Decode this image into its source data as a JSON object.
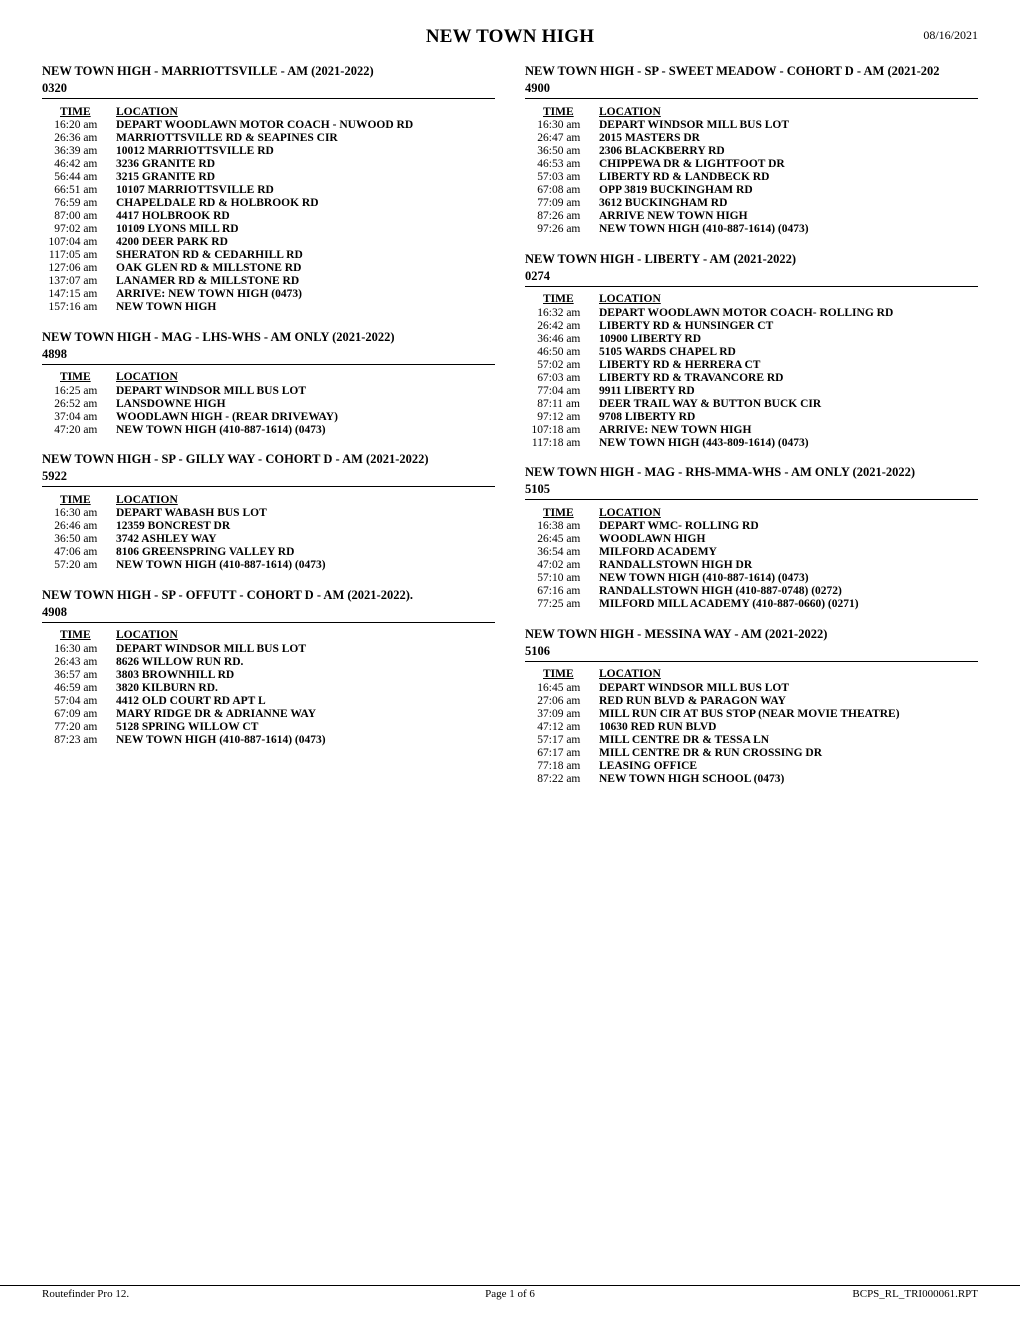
{
  "header": {
    "title": "NEW TOWN HIGH",
    "date": "08/16/2021"
  },
  "footer": {
    "left": "Routefinder Pro 12.",
    "center": "Page 1 of 6",
    "right": "BCPS_RL_TRI000061.RPT"
  },
  "table_headers": {
    "time": "TIME",
    "location": "LOCATION"
  },
  "left_routes": [
    {
      "title": "NEW TOWN HIGH - MARRIOTTSVILLE - AM (2021-2022)",
      "number": "0320",
      "stops": [
        {
          "idx": "1",
          "time": "6:20 am",
          "loc": "DEPART WOODLAWN MOTOR COACH - NUWOOD RD"
        },
        {
          "idx": "2",
          "time": "6:36 am",
          "loc": "MARRIOTTSVILLE RD & SEAPINES CIR"
        },
        {
          "idx": "3",
          "time": "6:39 am",
          "loc": "10012 MARRIOTTSVILLE RD"
        },
        {
          "idx": "4",
          "time": "6:42 am",
          "loc": "3236 GRANITE RD"
        },
        {
          "idx": "5",
          "time": "6:44 am",
          "loc": "3215 GRANITE RD"
        },
        {
          "idx": "6",
          "time": "6:51 am",
          "loc": "10107 MARRIOTTSVILLE RD"
        },
        {
          "idx": "7",
          "time": "6:59 am",
          "loc": "CHAPELDALE RD & HOLBROOK RD"
        },
        {
          "idx": "8",
          "time": "7:00 am",
          "loc": "4417 HOLBROOK RD"
        },
        {
          "idx": "9",
          "time": "7:02 am",
          "loc": "10109 LYONS MILL RD"
        },
        {
          "idx": "10",
          "time": "7:04 am",
          "loc": "4200 DEER PARK RD"
        },
        {
          "idx": "11",
          "time": "7:05 am",
          "loc": "SHERATON RD & CEDARHILL RD"
        },
        {
          "idx": "12",
          "time": "7:06 am",
          "loc": "OAK GLEN RD & MILLSTONE RD"
        },
        {
          "idx": "13",
          "time": "7:07 am",
          "loc": "LANAMER RD & MILLSTONE RD"
        },
        {
          "idx": "14",
          "time": "7:15 am",
          "loc": "ARRIVE: NEW TOWN HIGH (0473)"
        },
        {
          "idx": "15",
          "time": "7:16 am",
          "loc": "NEW TOWN HIGH"
        }
      ]
    },
    {
      "title": "NEW TOWN HIGH - MAG - LHS-WHS - AM ONLY (2021-2022)",
      "number": "4898",
      "stops": [
        {
          "idx": "1",
          "time": "6:25 am",
          "loc": "DEPART WINDSOR MILL BUS LOT"
        },
        {
          "idx": "2",
          "time": "6:52 am",
          "loc": "LANSDOWNE HIGH"
        },
        {
          "idx": "3",
          "time": "7:04 am",
          "loc": "WOODLAWN HIGH - (REAR DRIVEWAY)"
        },
        {
          "idx": "4",
          "time": "7:20 am",
          "loc": "NEW TOWN HIGH (410-887-1614) (0473)"
        }
      ]
    },
    {
      "title": "NEW TOWN HIGH - SP - GILLY WAY - COHORT D - AM (2021-2022)",
      "number": "5922",
      "stops": [
        {
          "idx": "1",
          "time": "6:30 am",
          "loc": "DEPART WABASH BUS LOT"
        },
        {
          "idx": "2",
          "time": "6:46 am",
          "loc": "12359 BONCREST DR"
        },
        {
          "idx": "3",
          "time": "6:50 am",
          "loc": "3742 ASHLEY WAY"
        },
        {
          "idx": "4",
          "time": "7:06 am",
          "loc": "8106 GREENSPRING VALLEY RD"
        },
        {
          "idx": "5",
          "time": "7:20 am",
          "loc": "NEW TOWN HIGH (410-887-1614) (0473)"
        }
      ]
    },
    {
      "title": "NEW TOWN HIGH - SP - OFFUTT - COHORT D - AM (2021-2022).",
      "number": "4908",
      "stops": [
        {
          "idx": "1",
          "time": "6:30 am",
          "loc": "DEPART WINDSOR MILL BUS LOT"
        },
        {
          "idx": "2",
          "time": "6:43 am",
          "loc": "8626 WILLOW RUN RD."
        },
        {
          "idx": "3",
          "time": "6:57 am",
          "loc": "3803 BROWNHILL RD"
        },
        {
          "idx": "4",
          "time": "6:59 am",
          "loc": "3820 KILBURN RD."
        },
        {
          "idx": "5",
          "time": "7:04 am",
          "loc": "4412 OLD COURT RD APT L"
        },
        {
          "idx": "6",
          "time": "7:09 am",
          "loc": "MARY RIDGE DR & ADRIANNE WAY"
        },
        {
          "idx": "7",
          "time": "7:20 am",
          "loc": "5128 SPRING WILLOW CT"
        },
        {
          "idx": "8",
          "time": "7:23 am",
          "loc": "NEW TOWN HIGH (410-887-1614) (0473)"
        }
      ]
    }
  ],
  "right_routes": [
    {
      "title": "NEW TOWN HIGH - SP - SWEET MEADOW - COHORT D - AM (2021-202",
      "number": "4900",
      "stops": [
        {
          "idx": "1",
          "time": "6:30 am",
          "loc": "DEPART WINDSOR MILL BUS LOT"
        },
        {
          "idx": "2",
          "time": "6:47 am",
          "loc": "2015 MASTERS DR"
        },
        {
          "idx": "3",
          "time": "6:50 am",
          "loc": "2306 BLACKBERRY RD"
        },
        {
          "idx": "4",
          "time": "6:53 am",
          "loc": "CHIPPEWA DR & LIGHTFOOT DR"
        },
        {
          "idx": "5",
          "time": "7:03 am",
          "loc": "LIBERTY RD & LANDBECK RD"
        },
        {
          "idx": "6",
          "time": "7:08 am",
          "loc": "OPP 3819 BUCKINGHAM RD"
        },
        {
          "idx": "7",
          "time": "7:09 am",
          "loc": "3612 BUCKINGHAM RD"
        },
        {
          "idx": "8",
          "time": "7:26 am",
          "loc": "ARRIVE NEW TOWN HIGH"
        },
        {
          "idx": "9",
          "time": "7:26 am",
          "loc": "NEW TOWN HIGH (410-887-1614) (0473)"
        }
      ]
    },
    {
      "title": "NEW TOWN HIGH - LIBERTY - AM (2021-2022)",
      "number": "0274",
      "stops": [
        {
          "idx": "1",
          "time": "6:32 am",
          "loc": "DEPART WOODLAWN MOTOR COACH- ROLLING RD"
        },
        {
          "idx": "2",
          "time": "6:42 am",
          "loc": "LIBERTY RD & HUNSINGER CT"
        },
        {
          "idx": "3",
          "time": "6:46 am",
          "loc": "10900 LIBERTY RD"
        },
        {
          "idx": "4",
          "time": "6:50 am",
          "loc": "5105 WARDS CHAPEL RD"
        },
        {
          "idx": "5",
          "time": "7:02 am",
          "loc": "LIBERTY RD & HERRERA CT"
        },
        {
          "idx": "6",
          "time": "7:03 am",
          "loc": "LIBERTY RD & TRAVANCORE RD"
        },
        {
          "idx": "7",
          "time": "7:04 am",
          "loc": "9911 LIBERTY RD"
        },
        {
          "idx": "8",
          "time": "7:11 am",
          "loc": "DEER TRAIL WAY & BUTTON BUCK CIR"
        },
        {
          "idx": "9",
          "time": "7:12 am",
          "loc": "9708 LIBERTY RD"
        },
        {
          "idx": "10",
          "time": "7:18 am",
          "loc": "ARRIVE: NEW TOWN HIGH"
        },
        {
          "idx": "11",
          "time": "7:18 am",
          "loc": "NEW TOWN HIGH (443-809-1614) (0473)"
        }
      ]
    },
    {
      "title": "NEW TOWN HIGH - MAG - RHS-MMA-WHS - AM ONLY (2021-2022)",
      "number": "5105",
      "stops": [
        {
          "idx": "1",
          "time": "6:38 am",
          "loc": "DEPART WMC- ROLLING RD"
        },
        {
          "idx": "2",
          "time": "6:45 am",
          "loc": "WOODLAWN HIGH"
        },
        {
          "idx": "3",
          "time": "6:54 am",
          "loc": "MILFORD ACADEMY"
        },
        {
          "idx": "4",
          "time": "7:02 am",
          "loc": "RANDALLSTOWN HIGH DR"
        },
        {
          "idx": "5",
          "time": "7:10 am",
          "loc": "NEW TOWN HIGH (410-887-1614) (0473)"
        },
        {
          "idx": "6",
          "time": "7:16 am",
          "loc": "RANDALLSTOWN HIGH (410-887-0748) (0272)"
        },
        {
          "idx": "7",
          "time": "7:25 am",
          "loc": "MILFORD MILL ACADEMY (410-887-0660) (0271)"
        }
      ]
    },
    {
      "title": "NEW TOWN HIGH - MESSINA WAY - AM (2021-2022)",
      "number": "5106",
      "stops": [
        {
          "idx": "1",
          "time": "6:45 am",
          "loc": "DEPART WINDSOR MILL BUS LOT"
        },
        {
          "idx": "2",
          "time": "7:06 am",
          "loc": "RED RUN BLVD & PARAGON WAY"
        },
        {
          "idx": "3",
          "time": "7:09 am",
          "loc": "MILL RUN CIR AT BUS STOP (NEAR MOVIE THEATRE)"
        },
        {
          "idx": "4",
          "time": "7:12 am",
          "loc": "10630 RED RUN BLVD"
        },
        {
          "idx": "5",
          "time": "7:17 am",
          "loc": "MILL CENTRE DR & TESSA LN"
        },
        {
          "idx": "6",
          "time": "7:17 am",
          "loc": "MILL CENTRE DR & RUN CROSSING DR"
        },
        {
          "idx": "7",
          "time": "7:18 am",
          "loc": "LEASING OFFICE"
        },
        {
          "idx": "8",
          "time": "7:22 am",
          "loc": "NEW TOWN HIGH SCHOOL (0473)"
        }
      ]
    }
  ]
}
